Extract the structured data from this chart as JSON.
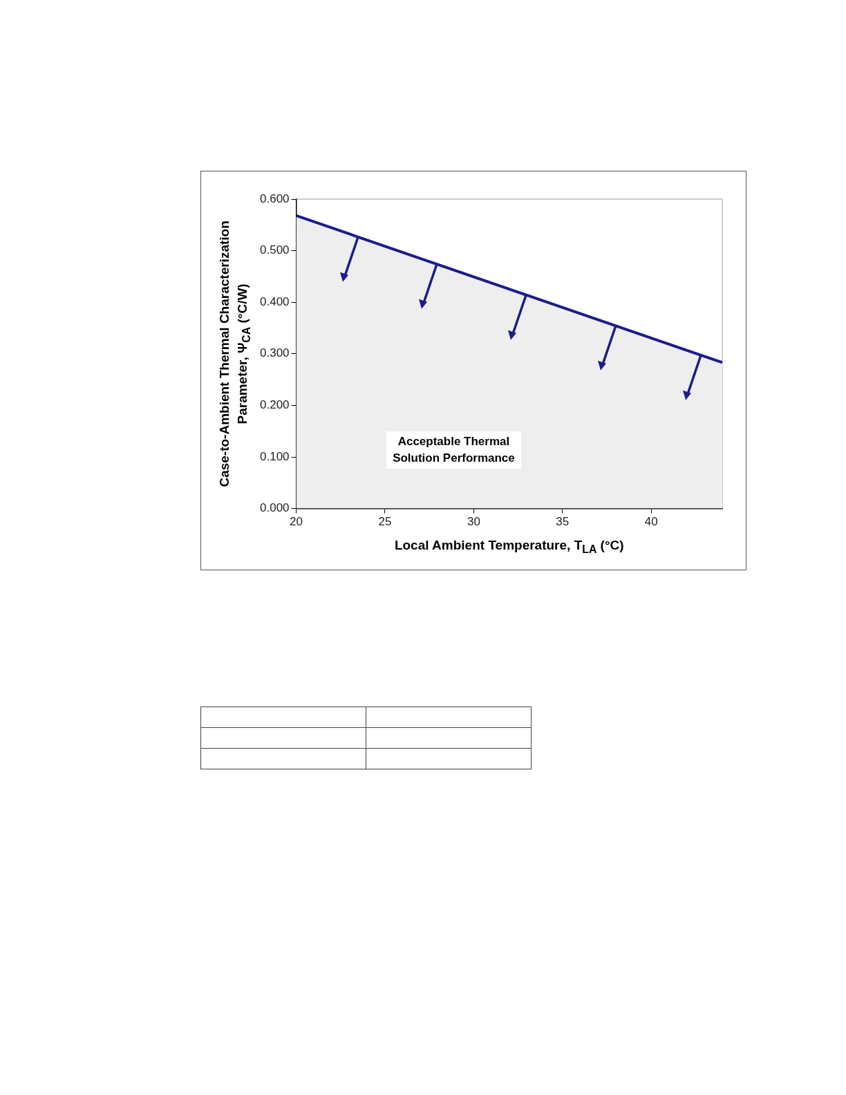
{
  "chart_data": {
    "type": "area",
    "xlabel": "Local Ambient Temperature, T$_{LA}$ (°C)",
    "ylabel": "Case-to-Ambient Thermal Characterization Parameter, Ψ$_{CA}$ (°C/W)",
    "x": [
      20,
      44
    ],
    "series": [
      {
        "color": "#1c1c8c",
        "values": [
          0.568,
          0.283
        ]
      }
    ],
    "xlim": [
      20,
      44
    ],
    "xticks": [
      20,
      25,
      30,
      35,
      40
    ],
    "ylim": [
      0,
      0.6
    ],
    "yticks": [
      {
        "value": 0,
        "label": "0.000"
      },
      {
        "value": 0.1,
        "label": "0.100"
      },
      {
        "value": 0.2,
        "label": "0.200"
      },
      {
        "value": 0.3,
        "label": "0.300"
      },
      {
        "value": 0.4,
        "label": "0.400"
      },
      {
        "value": 0.5,
        "label": "0.500"
      },
      {
        "value": 0.6,
        "label": "0.600"
      }
    ],
    "grid": false,
    "legend": false,
    "annotations": [
      "Acceptable Thermal\nSolution Performance"
    ]
  }
}
